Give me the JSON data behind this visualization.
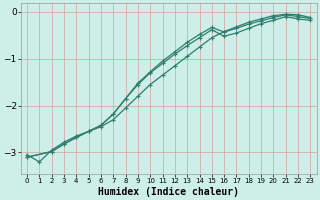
{
  "xlabel": "Humidex (Indice chaleur)",
  "bg_color": "#ceeee8",
  "grid_color": "#c8e8e2",
  "line_color": "#2e7d6e",
  "xlim": [
    -0.5,
    23.5
  ],
  "ylim": [
    -3.45,
    0.18
  ],
  "yticks": [
    0,
    -1,
    -2,
    -3
  ],
  "xticks": [
    0,
    1,
    2,
    3,
    4,
    5,
    6,
    7,
    8,
    9,
    10,
    11,
    12,
    13,
    14,
    15,
    16,
    17,
    18,
    19,
    20,
    21,
    22,
    23
  ],
  "line1_x": [
    0,
    1,
    2,
    3,
    4,
    5,
    6,
    7,
    8,
    9,
    10,
    11,
    12,
    13,
    14,
    15,
    16,
    17,
    18,
    19,
    20,
    21,
    22,
    23
  ],
  "line1_y": [
    -3.05,
    -3.2,
    -2.95,
    -2.78,
    -2.65,
    -2.55,
    -2.45,
    -2.3,
    -2.05,
    -1.8,
    -1.55,
    -1.35,
    -1.15,
    -0.95,
    -0.75,
    -0.55,
    -0.42,
    -0.32,
    -0.22,
    -0.15,
    -0.08,
    -0.05,
    -0.06,
    -0.12
  ],
  "line2_x": [
    0,
    2,
    3,
    4,
    5,
    6,
    7,
    8,
    9,
    10,
    11,
    12,
    13,
    14,
    15,
    16,
    17,
    18,
    19,
    20,
    21,
    22,
    23
  ],
  "line2_y": [
    -3.1,
    -2.98,
    -2.82,
    -2.68,
    -2.55,
    -2.42,
    -2.18,
    -1.85,
    -1.55,
    -1.3,
    -1.1,
    -0.9,
    -0.72,
    -0.55,
    -0.38,
    -0.52,
    -0.45,
    -0.35,
    -0.25,
    -0.18,
    -0.1,
    -0.15,
    -0.18
  ],
  "line3_x": [
    0,
    2,
    3,
    4,
    5,
    6,
    7,
    8,
    9,
    10,
    11,
    12,
    13,
    14,
    15,
    16,
    17,
    18,
    19,
    20,
    21,
    22,
    23
  ],
  "line3_y": [
    -3.1,
    -2.98,
    -2.82,
    -2.68,
    -2.55,
    -2.42,
    -2.18,
    -1.85,
    -1.52,
    -1.28,
    -1.05,
    -0.85,
    -0.65,
    -0.48,
    -0.33,
    -0.43,
    -0.35,
    -0.26,
    -0.19,
    -0.12,
    -0.06,
    -0.1,
    -0.14
  ]
}
